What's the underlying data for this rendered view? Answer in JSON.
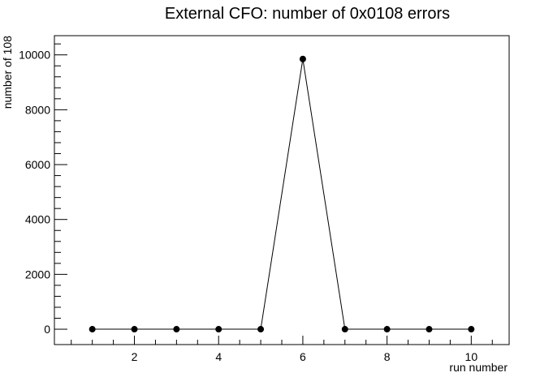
{
  "chart_data": {
    "type": "line",
    "title": "External CFO: number of 0x0108 errors",
    "xlabel": "run number",
    "ylabel": "number of 108",
    "xlim": [
      0.1,
      10.9
    ],
    "ylim": [
      -560,
      10700
    ],
    "xticks": [
      2,
      4,
      6,
      8,
      10
    ],
    "yticks": [
      0,
      2000,
      4000,
      6000,
      8000,
      10000
    ],
    "grid": false,
    "series": [
      {
        "x": [
          1,
          2,
          3,
          4,
          5,
          6,
          7,
          8,
          9,
          10
        ],
        "values": [
          0,
          0,
          0,
          0,
          0,
          9850,
          0,
          0,
          0,
          0
        ]
      }
    ],
    "colors": {
      "line": "#000000",
      "marker": "#000000",
      "frame": "#000000"
    }
  }
}
